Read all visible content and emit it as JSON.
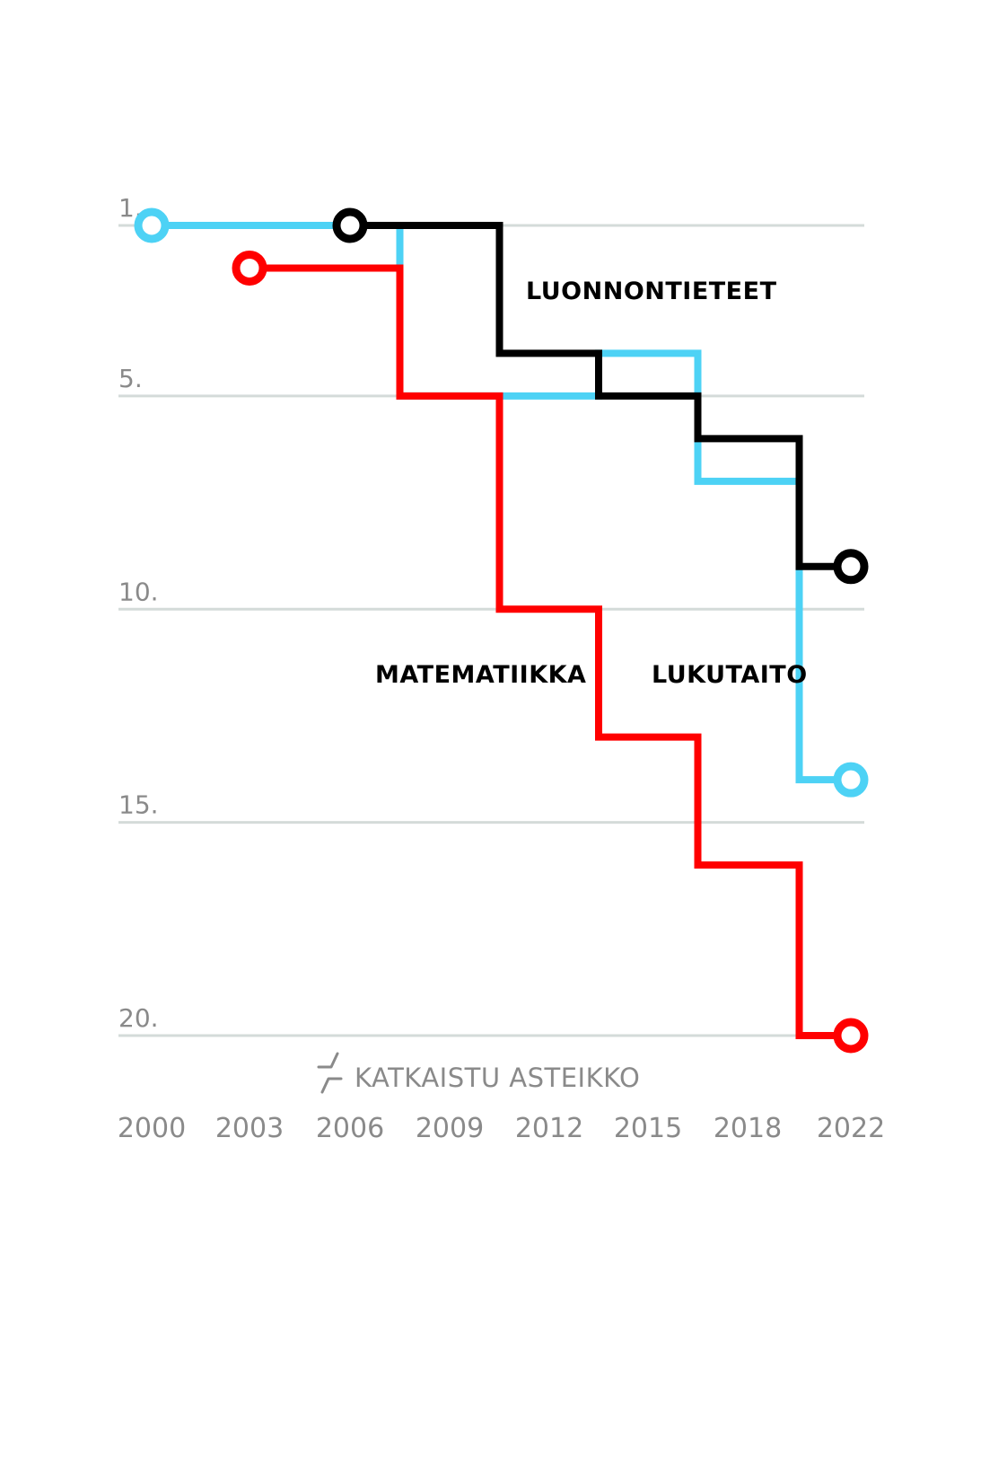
{
  "chart_data": {
    "type": "line",
    "step": true,
    "title": "",
    "xlabel": "",
    "ylabel": "",
    "y_reversed": true,
    "ylim": [
      1,
      20
    ],
    "yticks": [
      {
        "value": 1,
        "label": "1."
      },
      {
        "value": 5,
        "label": "5."
      },
      {
        "value": 10,
        "label": "10."
      },
      {
        "value": 15,
        "label": "15."
      },
      {
        "value": 20,
        "label": "20."
      }
    ],
    "x_ticks": [
      "2000",
      "2003",
      "2006",
      "2009",
      "2012",
      "2015",
      "2018",
      "2022"
    ],
    "grid": true,
    "series": [
      {
        "name": "LUKUTAITO",
        "color": "#4dd2f5",
        "ranks": [
          1,
          1,
          1,
          5,
          5,
          4,
          7,
          14
        ]
      },
      {
        "name": "LUONNONTIETEET",
        "color": "#000000",
        "ranks": [
          null,
          null,
          1,
          1,
          4,
          5,
          6,
          9
        ]
      },
      {
        "name": "MATEMATIIKKA",
        "color": "#ff0000",
        "ranks": [
          null,
          2,
          2,
          5,
          10,
          13,
          16,
          20
        ]
      }
    ],
    "annotation": "KATKAISTU ASTEIKKO",
    "annotation_icon": "broken-scale-icon"
  }
}
